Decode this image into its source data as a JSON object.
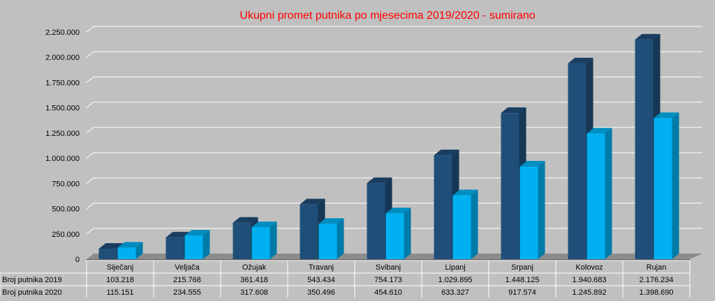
{
  "chart_data": {
    "type": "bar",
    "title": "Ukupni promet putnika po mjesecima 2019/2020 - sumirano",
    "categories": [
      "Siječanj",
      "Veljača",
      "Ožujak",
      "Travanj",
      "Svibanj",
      "Lipanj",
      "Srpanj",
      "Kolovoz",
      "Rujan"
    ],
    "series": [
      {
        "name": "Broj putnika 2019",
        "values": [
          103218,
          215768,
          361418,
          543434,
          754173,
          1029895,
          1448125,
          1940683,
          2176234
        ],
        "labels": [
          "103.218",
          "215.768",
          "361.418",
          "543.434",
          "754.173",
          "1.029.895",
          "1.448.125",
          "1.940.683",
          "2.176.234"
        ],
        "color": "#1f4e79"
      },
      {
        "name": "Broj putnika 2020",
        "values": [
          115151,
          234555,
          317608,
          350496,
          454610,
          633327,
          917574,
          1245892,
          1398690
        ],
        "labels": [
          "115.151",
          "234.555",
          "317.608",
          "350.496",
          "454.610",
          "633.327",
          "917.574",
          "1.245.892",
          "1.398.690"
        ],
        "color": "#00b0f0"
      }
    ],
    "yticks": [
      0,
      250000,
      500000,
      750000,
      1000000,
      1250000,
      1500000,
      1750000,
      2000000,
      2250000
    ],
    "ytick_labels": [
      "0",
      "250.000",
      "500.000",
      "750.000",
      "1.000.000",
      "1.250.000",
      "1.500.000",
      "1.750.000",
      "2.000.000",
      "2.250.000"
    ],
    "ylim": [
      0,
      2250000
    ],
    "grid": true,
    "title_color": "#ff0000",
    "data_table": true
  }
}
